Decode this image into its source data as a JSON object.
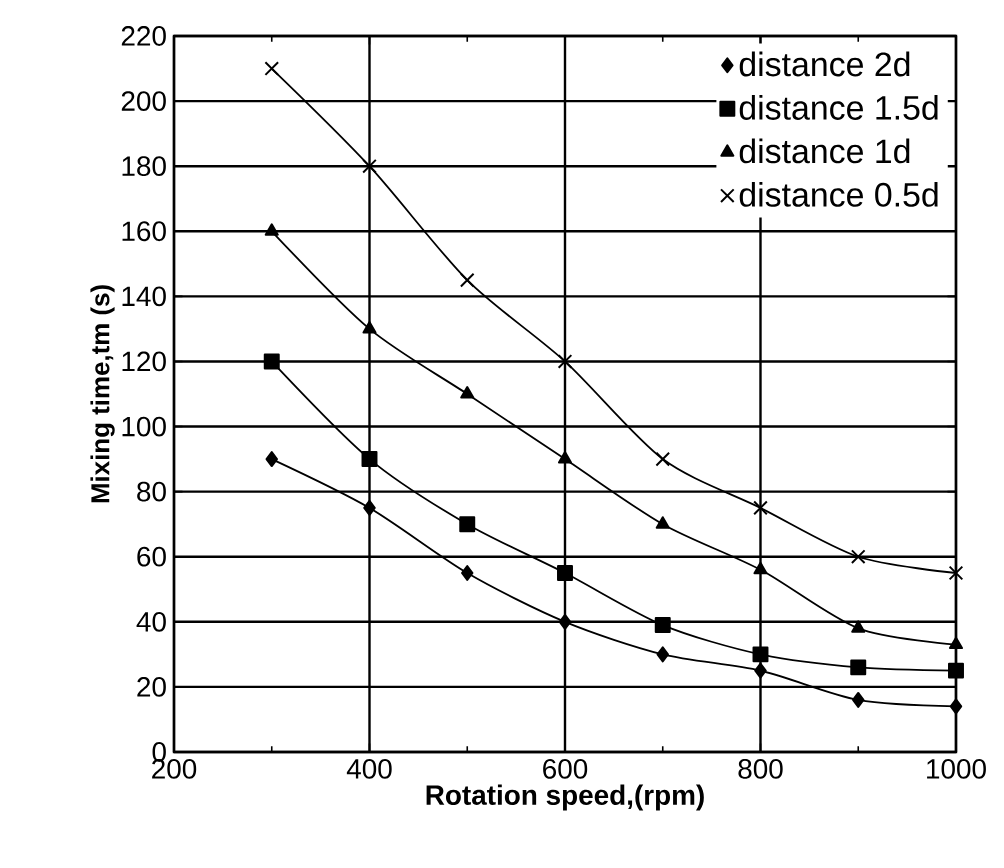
{
  "chart_data": {
    "type": "line",
    "xlabel": "Rotation speed,(rpm)",
    "ylabel": "Mixing time,tm (s)",
    "x": [
      300,
      400,
      500,
      600,
      700,
      800,
      900,
      1000
    ],
    "series": [
      {
        "name": "distance   2d",
        "color": "#000000",
        "marker": "diamond",
        "values": [
          90,
          75,
          55,
          40,
          30,
          25,
          16,
          14
        ]
      },
      {
        "name": "distance   1.5d",
        "color": "#000000",
        "marker": "square",
        "values": [
          120,
          90,
          70,
          55,
          39,
          30,
          26,
          25
        ]
      },
      {
        "name": "distance  1d",
        "color": "#000000",
        "marker": "triangle",
        "values": [
          160,
          130,
          110,
          90,
          70,
          56,
          38,
          33
        ]
      },
      {
        "name": "distance  0.5d",
        "color": "#000000",
        "marker": "cross",
        "values": [
          210,
          180,
          145,
          120,
          90,
          75,
          60,
          55
        ]
      }
    ],
    "xlim": [
      200,
      1000
    ],
    "xticks": [
      200,
      400,
      600,
      800,
      1000
    ],
    "ylim": [
      0,
      220
    ],
    "yticks": [
      0,
      20,
      40,
      60,
      80,
      100,
      120,
      140,
      160,
      180,
      200,
      220
    ],
    "grid": true,
    "legend": "top right"
  }
}
